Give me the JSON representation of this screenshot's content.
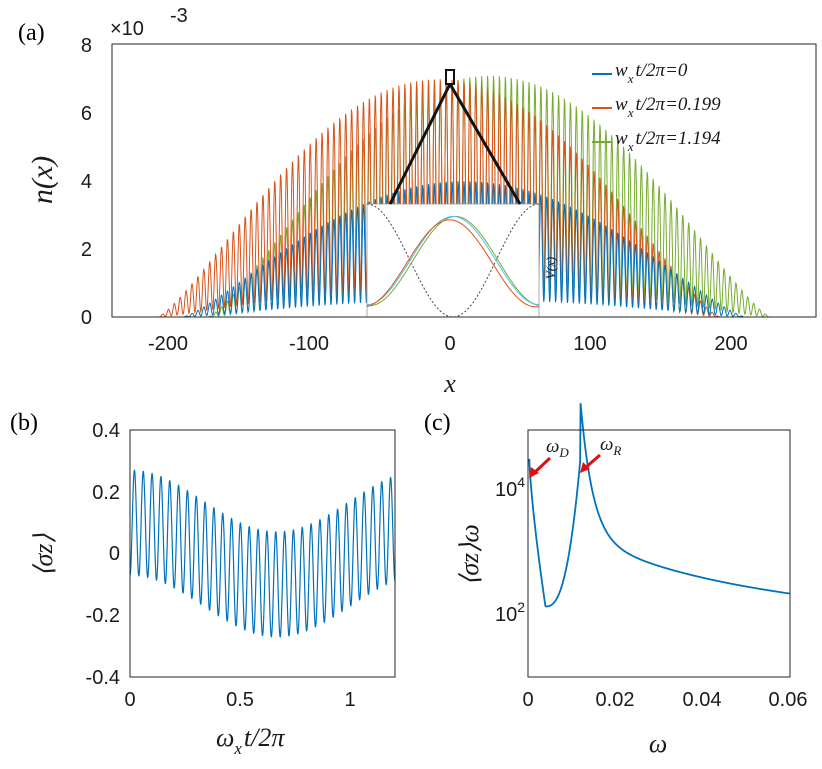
{
  "chart_data": [
    {
      "panel": "(a)",
      "type": "line",
      "ylabel": "n(x)",
      "xlabel": "x",
      "scale_factor": "×10",
      "scale_exponent": "-3",
      "xlim": [
        -250,
        250
      ],
      "ylim": [
        0,
        8
      ],
      "x_ticks": [
        "-200",
        "-100",
        "0",
        "100",
        "200"
      ],
      "y_ticks": [
        "0",
        "2",
        "4",
        "6",
        "8"
      ],
      "legend_position": "top-right",
      "series": [
        {
          "name": "w_x t/2π=0",
          "label_main": "w",
          "label_sub": "x",
          "label_rest": "t/2π=0",
          "color": "#0072BD",
          "envelope": {
            "center": 0,
            "peak": 4.0,
            "half_width": 200
          }
        },
        {
          "name": "w_x t/2π=0.199",
          "label_main": "w",
          "label_sub": "x",
          "label_rest": "t/2π=0.199",
          "color": "#D95319",
          "envelope": {
            "center": -18,
            "peak": 7.0,
            "half_width": 200
          }
        },
        {
          "name": "w_x t/2π=1.194",
          "label_main": "w",
          "label_sub": "x",
          "label_rest": "t/2π=1.194",
          "color": "#77AC30",
          "envelope": {
            "center": 18,
            "peak": 7.1,
            "half_width": 200
          }
        }
      ],
      "inset": {
        "ylabel": "V(x)"
      }
    },
    {
      "panel": "(b)",
      "type": "line",
      "xlabel_main": "ω",
      "xlabel_sub": "x",
      "xlabel_rest": "t/2π",
      "ylabel": "⟨σz⟩",
      "xlim": [
        0,
        1.2
      ],
      "ylim": [
        -0.4,
        0.4
      ],
      "x_ticks": [
        "0",
        "0.5",
        "1"
      ],
      "y_ticks": [
        "0.4",
        "0.2",
        "0",
        "-0.2",
        "-0.4"
      ],
      "series": [
        {
          "name": "sigma_z",
          "color": "#0072BD",
          "oscillations": 30,
          "amplitude": 0.17,
          "slow_offset": 0.1
        }
      ]
    },
    {
      "panel": "(c)",
      "type": "line",
      "xlabel": "ω",
      "ylabel": "⟨σz⟩ω",
      "xlim": [
        0,
        0.06
      ],
      "ylim_log10": [
        0.85,
        4.7
      ],
      "x_ticks": [
        "0",
        "0.02",
        "0.04",
        "0.06"
      ],
      "y_ticks": [
        "10^4",
        "10^2"
      ],
      "annotations": [
        "ω_D",
        "ω_R"
      ],
      "annotation_D": {
        "main": "ω",
        "sub": "D"
      },
      "annotation_R": {
        "main": "ω",
        "sub": "R"
      },
      "peaks": [
        {
          "omega": 0.0003,
          "log10": 4.25
        },
        {
          "omega": 0.012,
          "log10": 4.25
        }
      ],
      "dip": {
        "omega": 0.004,
        "log10": 1.95
      },
      "series": [
        {
          "name": "spectrum",
          "color": "#0072BD"
        }
      ]
    }
  ]
}
